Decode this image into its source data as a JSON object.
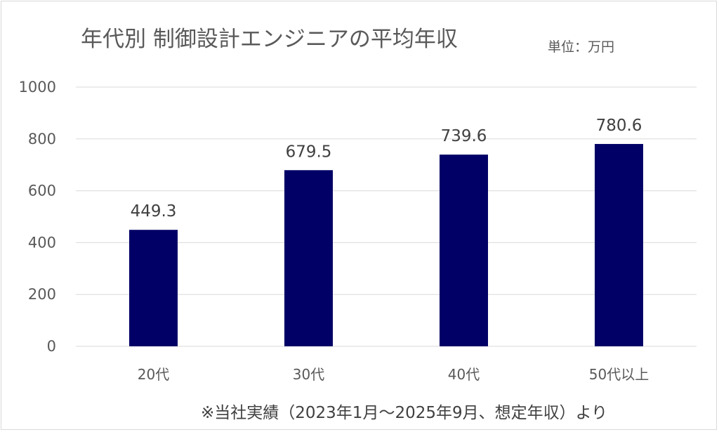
{
  "chart_data": {
    "type": "bar",
    "title": "年代別 制御設計エンジニアの平均年収",
    "unit_label": "単位：万円",
    "categories": [
      "20代",
      "30代",
      "40代",
      "50代以上"
    ],
    "values": [
      449.3,
      679.5,
      739.6,
      780.6
    ],
    "value_labels": [
      "449.3",
      "679.5",
      "739.6",
      "780.6"
    ],
    "ylim": [
      0,
      1000
    ],
    "yticks": [
      "0",
      "200",
      "400",
      "600",
      "800",
      "1000"
    ],
    "ytick_values": [
      0,
      200,
      400,
      600,
      800,
      1000
    ],
    "grid": true,
    "bar_color": "#000066",
    "footnote": "※当社実績（2023年1月～2025年9月、想定年収）より"
  }
}
